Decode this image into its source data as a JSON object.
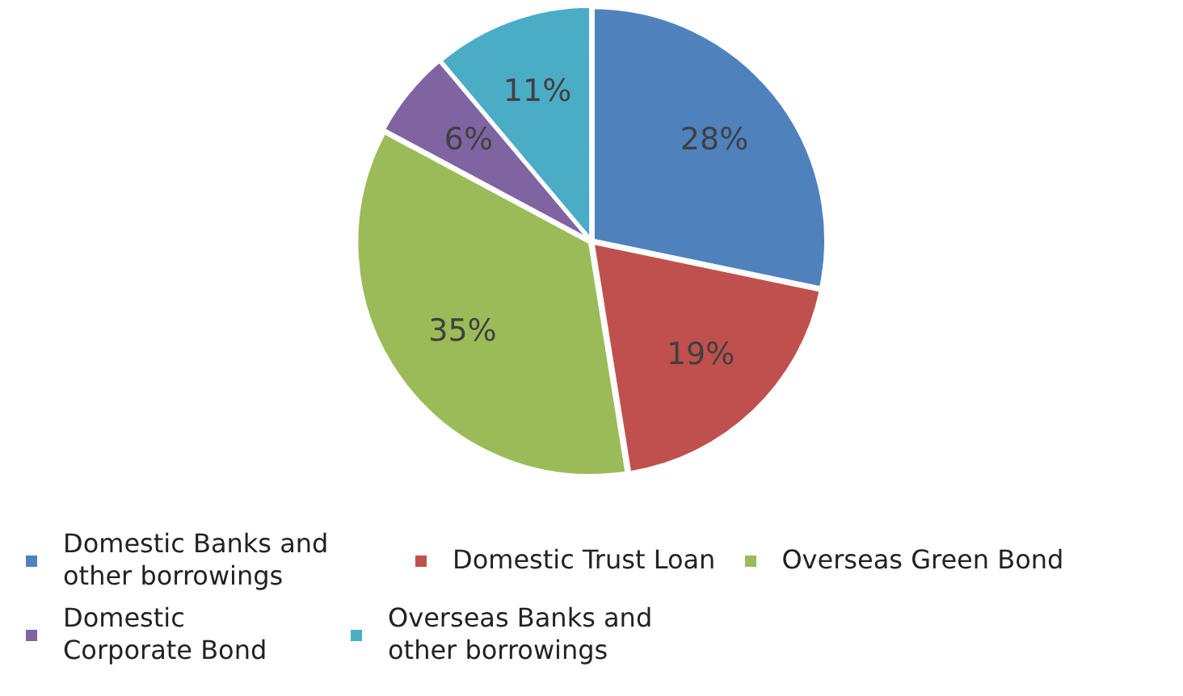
{
  "chart_data": {
    "type": "pie",
    "categories": [
      "Domestic Banks and other borrowings",
      "Domestic Trust Loan",
      "Overseas Green Bond",
      "Domestic Corporate Bond",
      "Overseas Banks and other borrowings"
    ],
    "values": [
      28,
      19,
      35,
      6,
      11
    ],
    "colors": [
      "#4f81bd",
      "#c0504d",
      "#9bbb59",
      "#8064a2",
      "#4bacc6"
    ],
    "value_labels": [
      "28%",
      "19%",
      "35%",
      "6%",
      "11%"
    ],
    "legend": "bottom"
  }
}
